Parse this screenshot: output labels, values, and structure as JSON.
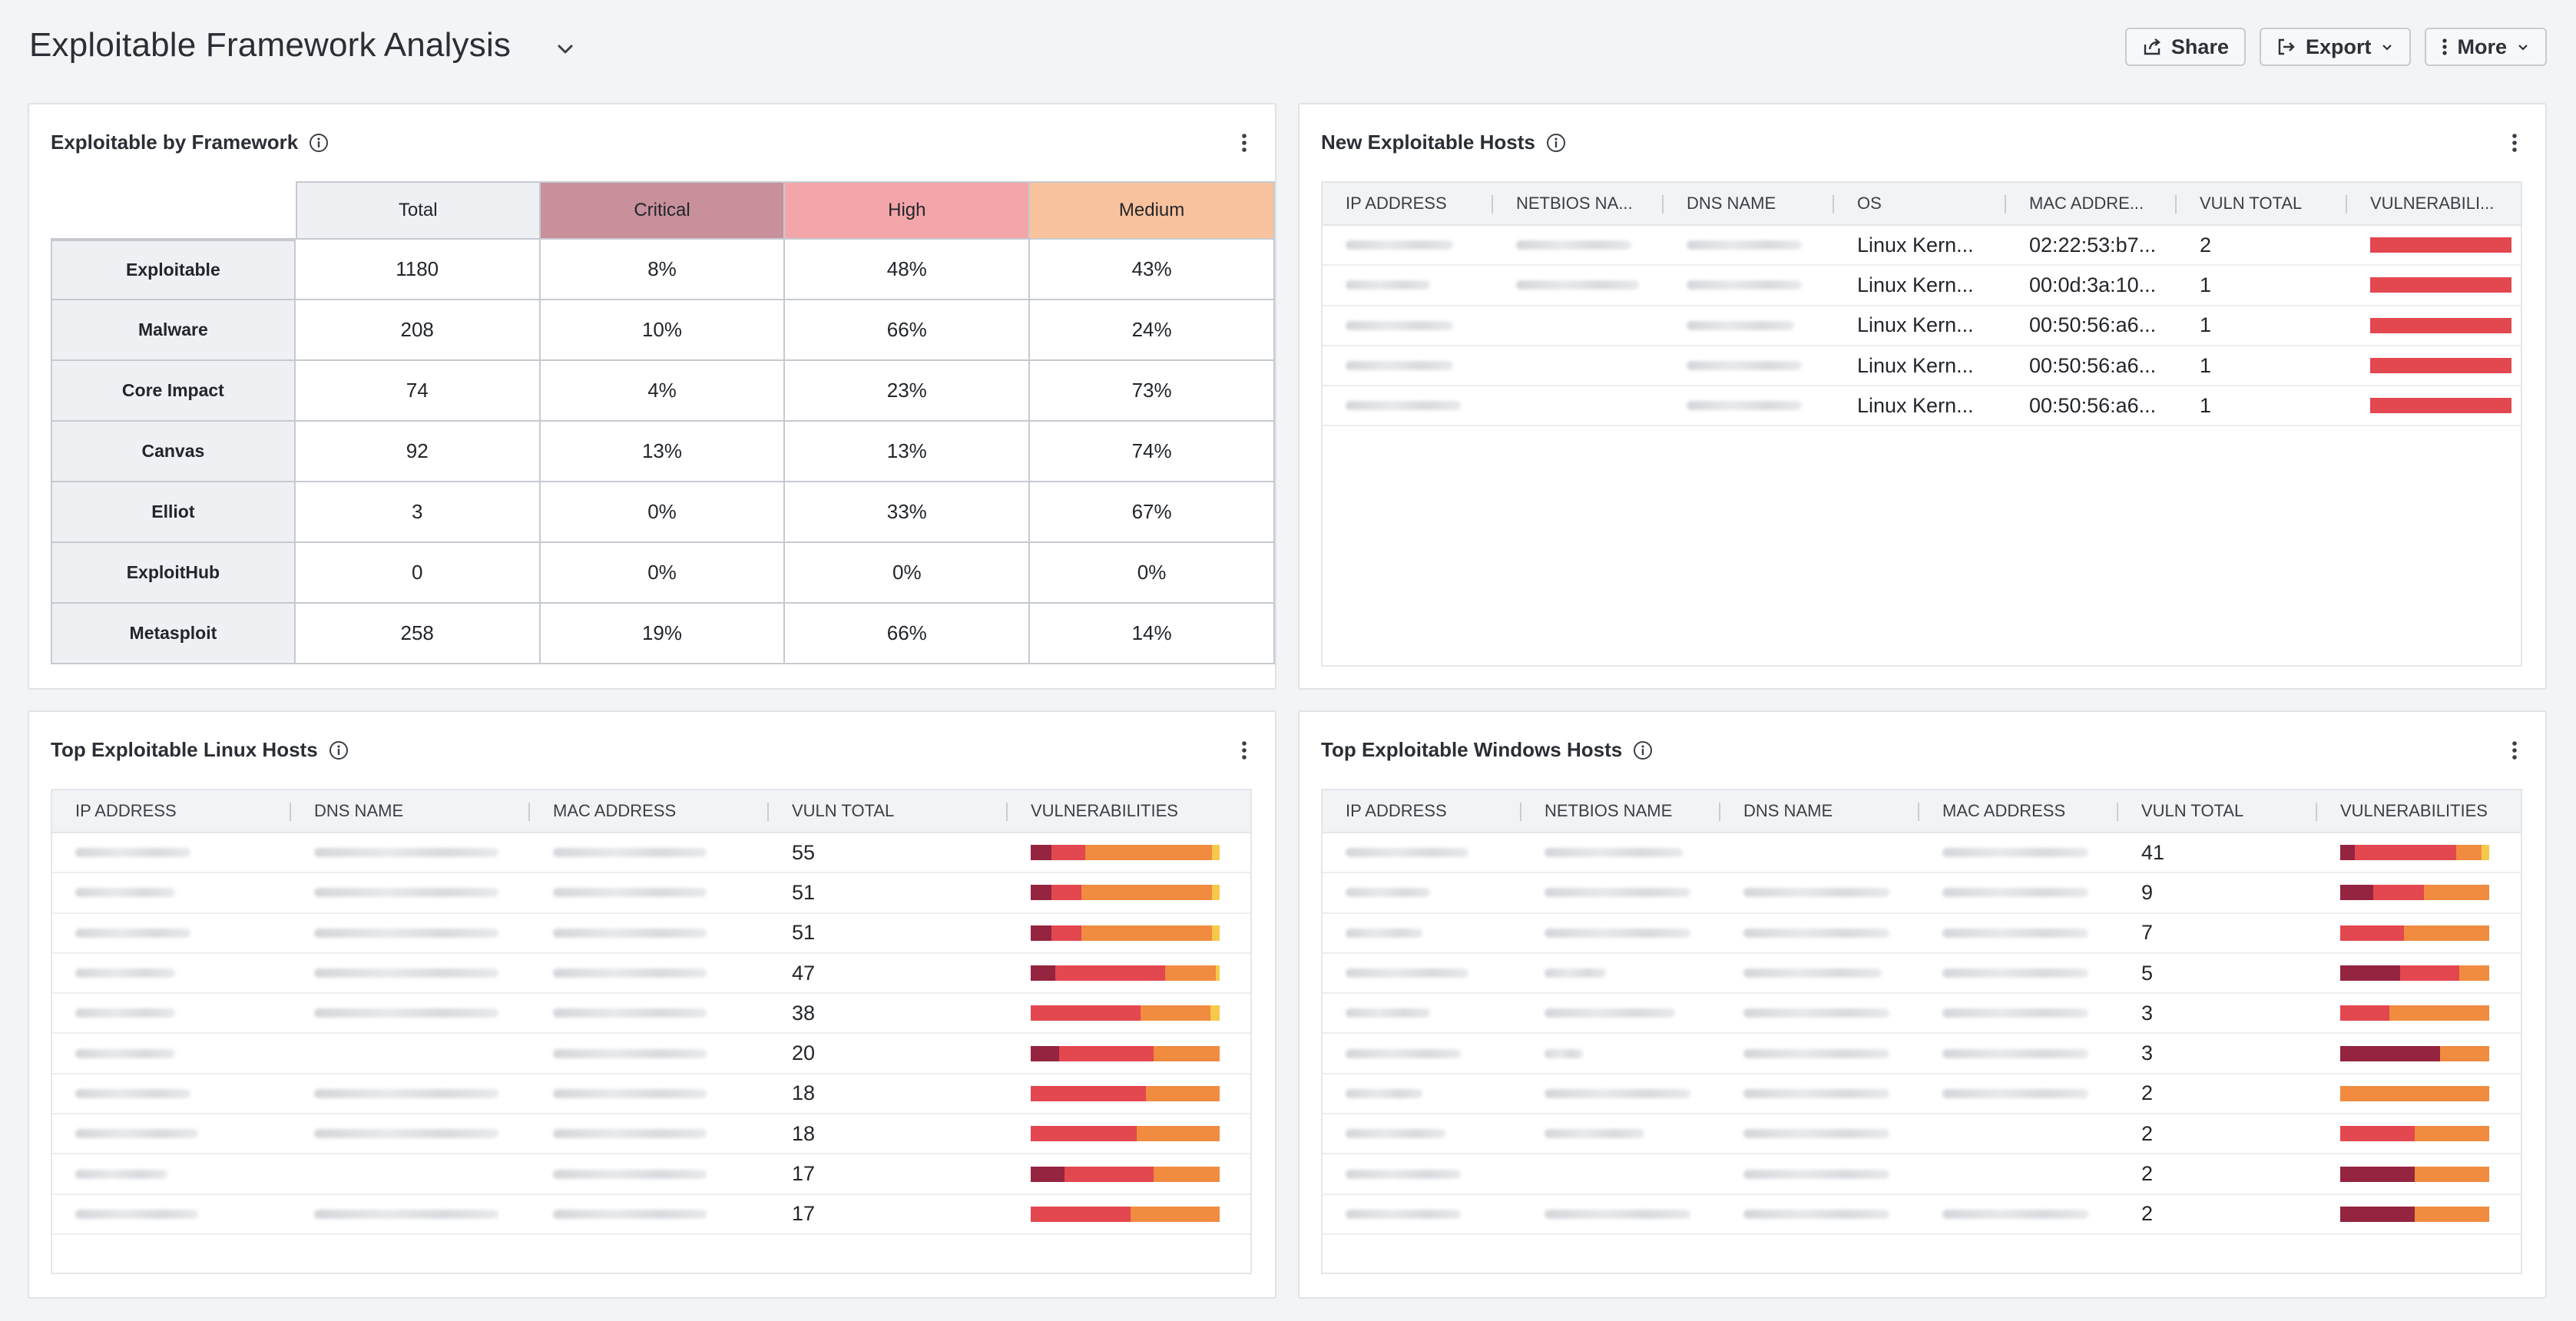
{
  "header": {
    "title": "Exploitable Framework Analysis",
    "buttons": {
      "share": "Share",
      "export": "Export",
      "more": "More"
    }
  },
  "colors": {
    "critical": "#94243f",
    "high": "#e3474f",
    "medium": "#f08b40",
    "low": "#f6c94a"
  },
  "framework_panel": {
    "title": "Exploitable by Framework",
    "columns": [
      "Total",
      "Critical",
      "High",
      "Medium"
    ],
    "rows": [
      {
        "label": "Exploitable",
        "total": "1180",
        "critical": "8%",
        "high": "48%",
        "medium": "43%"
      },
      {
        "label": "Malware",
        "total": "208",
        "critical": "10%",
        "high": "66%",
        "medium": "24%"
      },
      {
        "label": "Core Impact",
        "total": "74",
        "critical": "4%",
        "high": "23%",
        "medium": "73%"
      },
      {
        "label": "Canvas",
        "total": "92",
        "critical": "13%",
        "high": "13%",
        "medium": "74%"
      },
      {
        "label": "Elliot",
        "total": "3",
        "critical": "0%",
        "high": "33%",
        "medium": "67%"
      },
      {
        "label": "ExploitHub",
        "total": "0",
        "critical": "0%",
        "high": "0%",
        "medium": "0%"
      },
      {
        "label": "Metasploit",
        "total": "258",
        "critical": "19%",
        "high": "66%",
        "medium": "14%"
      }
    ]
  },
  "new_hosts_panel": {
    "title": "New Exploitable Hosts",
    "columns": [
      "IP ADDRESS",
      "NETBIOS NA...",
      "DNS NAME",
      "OS",
      "MAC ADDRE...",
      "VULN TOTAL",
      "VULNERABILI..."
    ],
    "rows": [
      {
        "os": "Linux Kern...",
        "mac": "02:22:53:b7...",
        "vuln_total": "2",
        "bar": [
          0,
          100,
          0,
          0
        ]
      },
      {
        "os": "Linux Kern...",
        "mac": "00:0d:3a:10...",
        "vuln_total": "1",
        "bar": [
          0,
          100,
          0,
          0
        ]
      },
      {
        "os": "Linux Kern...",
        "mac": "00:50:56:a6...",
        "vuln_total": "1",
        "bar": [
          0,
          100,
          0,
          0
        ]
      },
      {
        "os": "Linux Kern...",
        "mac": "00:50:56:a6...",
        "vuln_total": "1",
        "bar": [
          0,
          100,
          0,
          0
        ]
      },
      {
        "os": "Linux Kern...",
        "mac": "00:50:56:a6...",
        "vuln_total": "1",
        "bar": [
          0,
          100,
          0,
          0
        ]
      }
    ]
  },
  "linux_panel": {
    "title": "Top Exploitable Linux Hosts",
    "columns": [
      "IP ADDRESS",
      "DNS NAME",
      "MAC ADDRESS",
      "VULN TOTAL",
      "VULNERABILITIES"
    ],
    "rows": [
      {
        "vuln_total": "55",
        "bar": [
          11,
          18,
          67,
          4
        ]
      },
      {
        "vuln_total": "51",
        "bar": [
          11,
          16,
          69,
          4
        ]
      },
      {
        "vuln_total": "51",
        "bar": [
          11,
          16,
          69,
          4
        ]
      },
      {
        "vuln_total": "47",
        "bar": [
          13,
          58,
          27,
          2
        ]
      },
      {
        "vuln_total": "38",
        "bar": [
          0,
          58,
          37,
          5
        ]
      },
      {
        "vuln_total": "20",
        "bar": [
          15,
          50,
          35,
          0
        ]
      },
      {
        "vuln_total": "18",
        "bar": [
          0,
          61,
          39,
          0
        ]
      },
      {
        "vuln_total": "18",
        "bar": [
          0,
          56,
          44,
          0
        ]
      },
      {
        "vuln_total": "17",
        "bar": [
          18,
          47,
          35,
          0
        ]
      },
      {
        "vuln_total": "17",
        "bar": [
          0,
          53,
          47,
          0
        ]
      }
    ]
  },
  "windows_panel": {
    "title": "Top Exploitable Windows Hosts",
    "columns": [
      "IP ADDRESS",
      "NETBIOS NAME",
      "DNS NAME",
      "MAC ADDRESS",
      "VULN TOTAL",
      "VULNERABILITIES"
    ],
    "rows": [
      {
        "vuln_total": "41",
        "bar": [
          10,
          68,
          17,
          5
        ]
      },
      {
        "vuln_total": "9",
        "bar": [
          22,
          34,
          44,
          0
        ]
      },
      {
        "vuln_total": "7",
        "bar": [
          0,
          43,
          57,
          0
        ]
      },
      {
        "vuln_total": "5",
        "bar": [
          40,
          40,
          20,
          0
        ]
      },
      {
        "vuln_total": "3",
        "bar": [
          0,
          33,
          67,
          0
        ]
      },
      {
        "vuln_total": "3",
        "bar": [
          67,
          0,
          33,
          0
        ]
      },
      {
        "vuln_total": "2",
        "bar": [
          0,
          0,
          100,
          0
        ]
      },
      {
        "vuln_total": "2",
        "bar": [
          0,
          50,
          50,
          0
        ]
      },
      {
        "vuln_total": "2",
        "bar": [
          50,
          0,
          50,
          0
        ]
      },
      {
        "vuln_total": "2",
        "bar": [
          50,
          0,
          50,
          0
        ]
      }
    ]
  }
}
